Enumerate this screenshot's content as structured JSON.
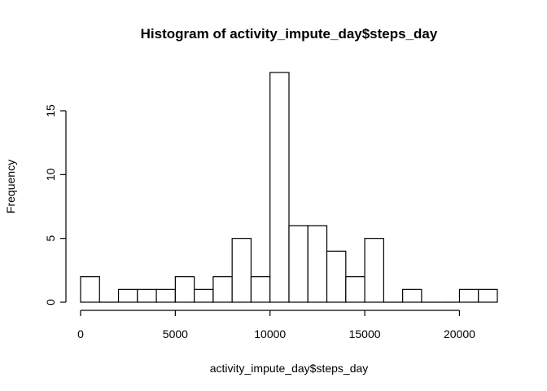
{
  "chart_data": {
    "type": "bar",
    "title": "Histogram of activity_impute_day$steps_day",
    "xlabel": "activity_impute_day$steps_day",
    "ylabel": "Frequency",
    "bin_width": 1000,
    "bins_start": [
      0,
      1000,
      2000,
      3000,
      4000,
      5000,
      6000,
      7000,
      8000,
      9000,
      10000,
      11000,
      12000,
      13000,
      14000,
      15000,
      16000,
      17000,
      18000,
      19000,
      20000,
      21000
    ],
    "values": [
      2,
      0,
      1,
      1,
      1,
      2,
      1,
      2,
      5,
      2,
      18,
      6,
      6,
      4,
      2,
      5,
      0,
      1,
      0,
      0,
      1,
      1
    ],
    "xlim": [
      0,
      22000
    ],
    "ylim": [
      0,
      18
    ],
    "x_ticks": [
      0,
      5000,
      10000,
      15000,
      20000
    ],
    "y_ticks": [
      0,
      5,
      10,
      15
    ],
    "grid": false,
    "colors": {
      "bar_fill": "#ffffff",
      "bar_stroke": "#000000"
    }
  }
}
